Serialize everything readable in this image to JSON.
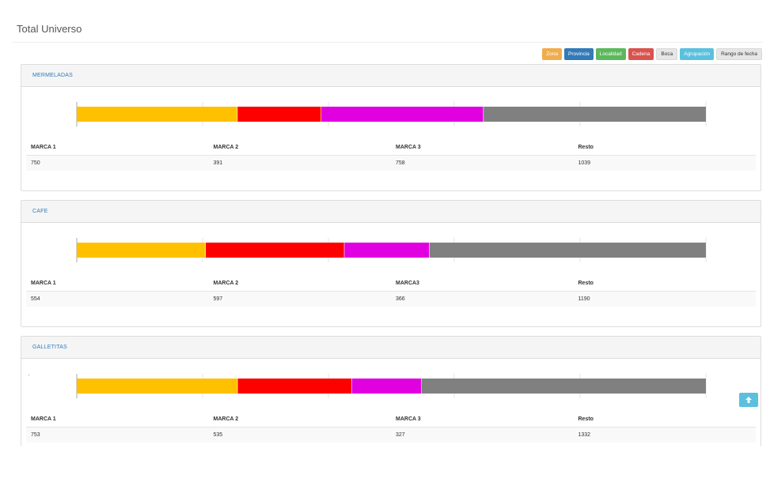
{
  "page": {
    "title": "Total Universo"
  },
  "filters": [
    {
      "label": "Zona",
      "color": "#f0ad4e",
      "light": false
    },
    {
      "label": "Provincia",
      "color": "#337ab7",
      "light": false
    },
    {
      "label": "Localidad",
      "color": "#5cb85c",
      "light": false
    },
    {
      "label": "Cadena",
      "color": "#d9534f",
      "light": false
    },
    {
      "label": "Boca",
      "color": "#e6e6e6",
      "light": true
    },
    {
      "label": "Agrupación",
      "color": "#5bc0de",
      "light": false
    },
    {
      "label": "Rango de fecha",
      "color": "#e6e6e6",
      "light": true
    }
  ],
  "series_colors": [
    "#ffc000",
    "#ff0000",
    "#e000e0",
    "#808080"
  ],
  "chart_data": [
    {
      "type": "bar",
      "orientation": "horizontal-stacked",
      "title": "MERMELADAS",
      "categories": [
        "MARCA 1",
        "MARCA 2",
        "MARCA 3",
        "Resto"
      ],
      "values": [
        750,
        391,
        758,
        1039
      ]
    },
    {
      "type": "bar",
      "orientation": "horizontal-stacked",
      "title": "CAFE",
      "categories": [
        "MARCA 1",
        "MARCA 2",
        "MARCA3",
        "Resto"
      ],
      "values": [
        554,
        597,
        366,
        1190
      ]
    },
    {
      "type": "bar",
      "orientation": "horizontal-stacked",
      "title": "GALLETITAS",
      "categories": [
        "MARCA 1",
        "MARCA 2",
        "MARCA 3",
        "Resto"
      ],
      "values": [
        753,
        535,
        327,
        1332
      ]
    }
  ]
}
